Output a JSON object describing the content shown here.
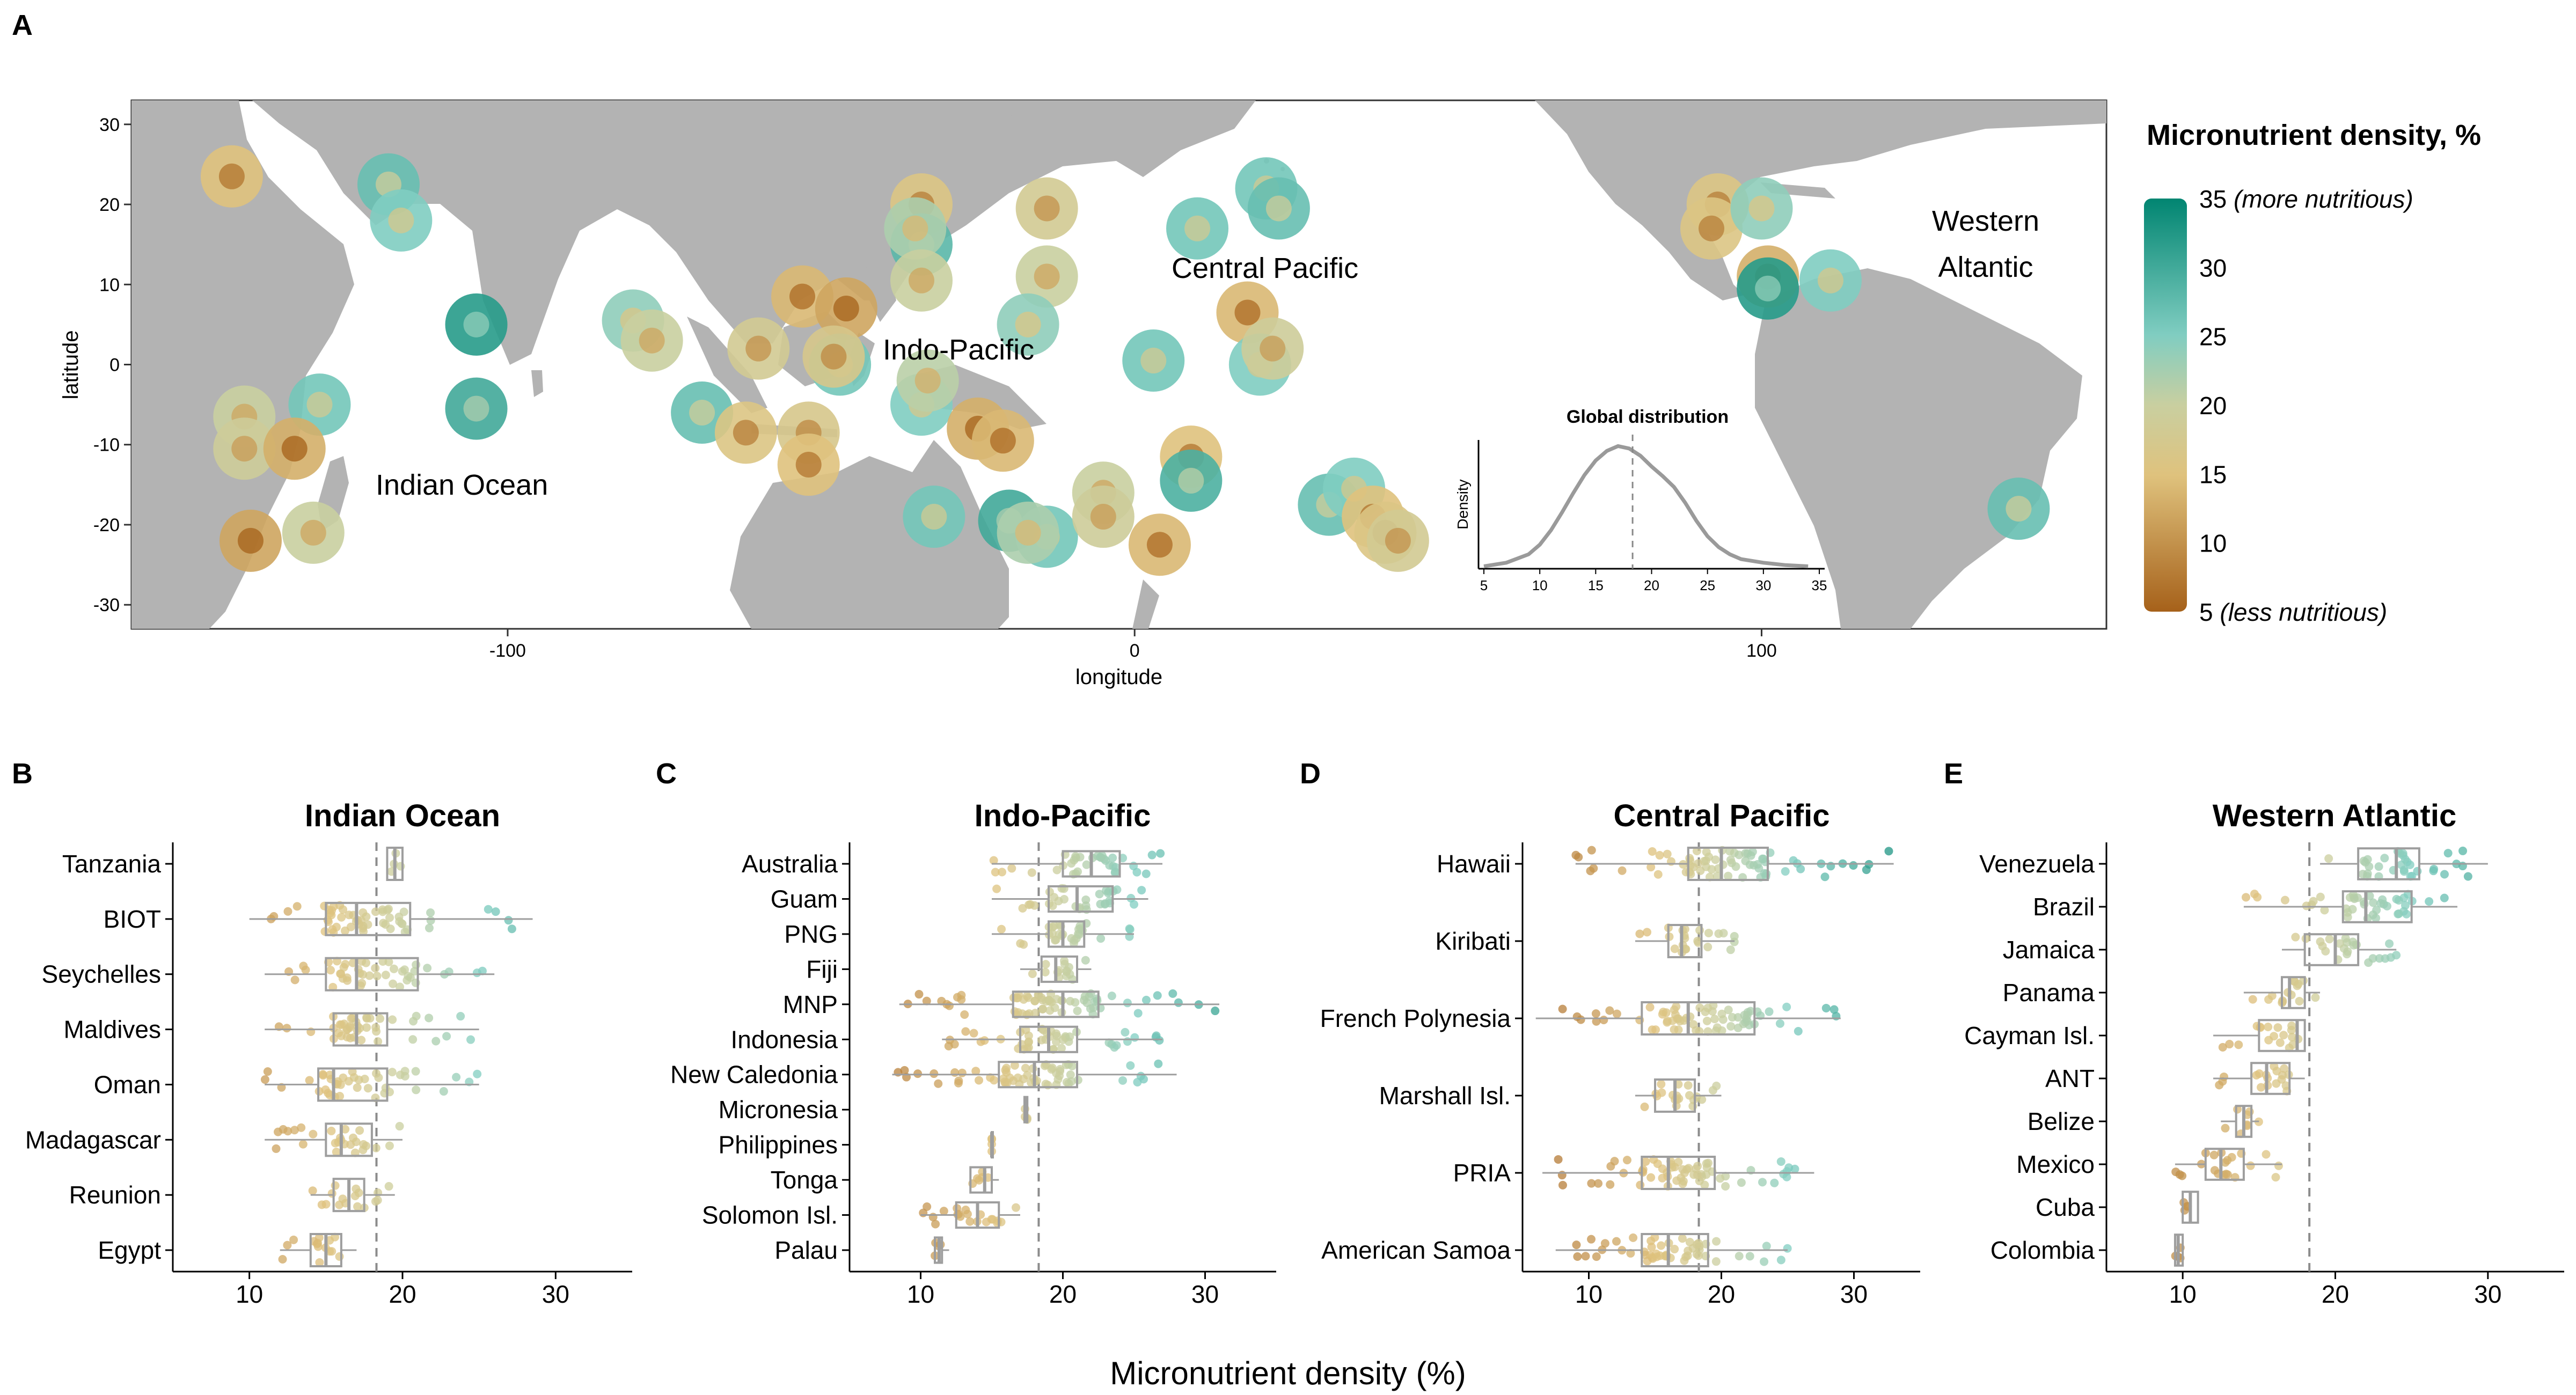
{
  "panel_letters": [
    "A",
    "B",
    "C",
    "D",
    "E"
  ],
  "map": {
    "xlabel": "longitude",
    "ylabel": "latitude",
    "x_ticks": [
      "-100",
      "0",
      "100"
    ],
    "y_ticks": [
      "30",
      "20",
      "10",
      "0",
      "-10",
      "-20",
      "-30"
    ],
    "region_labels": [
      "Indian Ocean",
      "Indo-Pacific",
      "Central Pacific",
      "Western\nAltantic"
    ],
    "inset": {
      "title": "Global distribution",
      "ylabel": "Density",
      "x_ticks": [
        "5",
        "10",
        "15",
        "20",
        "25",
        "30",
        "35"
      ]
    }
  },
  "legend": {
    "title": "Micronutrient density, %",
    "tick_labels": [
      "35 (more nutritious)",
      "30",
      "25",
      "20",
      "15",
      "10",
      "5 (less nutritious)"
    ],
    "range": [
      5,
      35
    ]
  },
  "colors": {
    "land": "#b3b3b3",
    "scale_low": "#a6611a",
    "scale_mid_low": "#dfc27d",
    "scale_mid": "#c9cfa0",
    "scale_mid_high": "#80cdc1",
    "scale_high": "#018571",
    "box": "#9e9e9e",
    "dashed_line": "#8c8c8c"
  },
  "shared_xlabel": "Micronutrient density (%)",
  "chart_data": [
    {
      "type": "scatter",
      "panel": "A",
      "title": "",
      "xlabel": "longitude",
      "ylabel": "latitude",
      "xlim": [
        -160,
        155
      ],
      "ylim": [
        -33,
        33
      ],
      "grid": false,
      "points": [
        {
          "lon": -144,
          "lat": 23.5,
          "value": 15
        },
        {
          "lon": -119,
          "lat": 22.5,
          "value": 27
        },
        {
          "lon": -117,
          "lat": 18,
          "value": 25
        },
        {
          "lon": -105,
          "lat": 5,
          "value": 32
        },
        {
          "lon": -105,
          "lat": -5.5,
          "value": 30
        },
        {
          "lon": -130,
          "lat": -5,
          "value": 26
        },
        {
          "lon": -142,
          "lat": -6.5,
          "value": 20
        },
        {
          "lon": -142,
          "lat": -10.5,
          "value": 19
        },
        {
          "lon": -134,
          "lat": -10.5,
          "value": 13
        },
        {
          "lon": -141,
          "lat": -22,
          "value": 12
        },
        {
          "lon": -131,
          "lat": -21,
          "value": 20
        },
        {
          "lon": -80,
          "lat": 5.5,
          "value": 24
        },
        {
          "lon": -77,
          "lat": 3,
          "value": 20
        },
        {
          "lon": -69,
          "lat": -6,
          "value": 27
        },
        {
          "lon": -62,
          "lat": -8.5,
          "value": 16
        },
        {
          "lon": -52,
          "lat": -8.5,
          "value": 17
        },
        {
          "lon": -52,
          "lat": -12.5,
          "value": 15
        },
        {
          "lon": -60,
          "lat": 2,
          "value": 18
        },
        {
          "lon": -53,
          "lat": 8.5,
          "value": 14
        },
        {
          "lon": -46,
          "lat": 7,
          "value": 12
        },
        {
          "lon": -47,
          "lat": 0,
          "value": 26
        },
        {
          "lon": -48,
          "lat": 1,
          "value": 17
        },
        {
          "lon": -34,
          "lat": 20,
          "value": 16
        },
        {
          "lon": -34,
          "lat": 15,
          "value": 28
        },
        {
          "lon": -35,
          "lat": 17,
          "value": 22
        },
        {
          "lon": -34,
          "lat": 10.5,
          "value": 20
        },
        {
          "lon": -14,
          "lat": 19.5,
          "value": 18
        },
        {
          "lon": -14,
          "lat": 11,
          "value": 20
        },
        {
          "lon": -17,
          "lat": 5,
          "value": 24
        },
        {
          "lon": -34,
          "lat": -5,
          "value": 25
        },
        {
          "lon": -33,
          "lat": -2,
          "value": 21
        },
        {
          "lon": -32,
          "lat": -19,
          "value": 26
        },
        {
          "lon": -25,
          "lat": -8,
          "value": 13
        },
        {
          "lon": -21,
          "lat": -9.5,
          "value": 14
        },
        {
          "lon": -20,
          "lat": -19.5,
          "value": 30
        },
        {
          "lon": -14,
          "lat": -21.5,
          "value": 26
        },
        {
          "lon": -17,
          "lat": -21,
          "value": 22
        },
        {
          "lon": -5,
          "lat": -16,
          "value": 20
        },
        {
          "lon": -5,
          "lat": -19,
          "value": 19
        },
        {
          "lon": 4,
          "lat": -22.5,
          "value": 14
        },
        {
          "lon": 3,
          "lat": 0.5,
          "value": 26
        },
        {
          "lon": 10,
          "lat": 17,
          "value": 26
        },
        {
          "lon": 21,
          "lat": 22,
          "value": 26
        },
        {
          "lon": 23,
          "lat": 19.5,
          "value": 27
        },
        {
          "lon": 18,
          "lat": 6.5,
          "value": 14
        },
        {
          "lon": 20,
          "lat": 0,
          "value": 25
        },
        {
          "lon": 22,
          "lat": 2,
          "value": 19
        },
        {
          "lon": 9,
          "lat": -11.5,
          "value": 15
        },
        {
          "lon": 9,
          "lat": -14.5,
          "value": 29
        },
        {
          "lon": 31,
          "lat": -17.5,
          "value": 27
        },
        {
          "lon": 35,
          "lat": -15.5,
          "value": 25
        },
        {
          "lon": 38,
          "lat": -19,
          "value": 15
        },
        {
          "lon": 40,
          "lat": -21,
          "value": 16
        },
        {
          "lon": 42,
          "lat": -22,
          "value": 18
        },
        {
          "lon": 93,
          "lat": 20,
          "value": 16
        },
        {
          "lon": 92,
          "lat": 17,
          "value": 16
        },
        {
          "lon": 100,
          "lat": 19.5,
          "value": 24
        },
        {
          "lon": 101,
          "lat": 11,
          "value": 13
        },
        {
          "lon": 101,
          "lat": 9.5,
          "value": 32
        },
        {
          "lon": 111,
          "lat": 10.5,
          "value": 25
        },
        {
          "lon": 141,
          "lat": -18,
          "value": 27
        }
      ]
    },
    {
      "type": "line",
      "panel": "A-inset",
      "title": "Global distribution",
      "xlabel": "",
      "ylabel": "Density",
      "xlim": [
        5,
        35
      ],
      "x": [
        5,
        7,
        9,
        10,
        11,
        12,
        13,
        14,
        15,
        16,
        17,
        18,
        19,
        20,
        21,
        22,
        23,
        24,
        25,
        26,
        27,
        28,
        30,
        32,
        34
      ],
      "y": [
        0.002,
        0.005,
        0.012,
        0.02,
        0.032,
        0.047,
        0.063,
        0.078,
        0.09,
        0.098,
        0.102,
        0.1,
        0.094,
        0.085,
        0.077,
        0.068,
        0.055,
        0.04,
        0.027,
        0.018,
        0.012,
        0.008,
        0.005,
        0.003,
        0.002
      ],
      "reference_x": 18.3
    },
    {
      "type": "box",
      "panel": "B",
      "title": "Indian Ocean",
      "xlabel": "",
      "ylabel": "",
      "xlim": [
        5,
        35
      ],
      "x_ticks": [
        10,
        20,
        30
      ],
      "reference_x": 18.3,
      "categories": [
        "Tanzania",
        "BIOT",
        "Seychelles",
        "Maldives",
        "Oman",
        "Madagascar",
        "Reunion",
        "Egypt"
      ],
      "boxes": [
        {
          "q1": 19,
          "median": 19.5,
          "q3": 20,
          "whisker_low": 19,
          "whisker_high": 20
        },
        {
          "q1": 15,
          "median": 17,
          "q3": 20.5,
          "whisker_low": 10,
          "whisker_high": 28.5
        },
        {
          "q1": 15,
          "median": 17,
          "q3": 21,
          "whisker_low": 11,
          "whisker_high": 26
        },
        {
          "q1": 15.5,
          "median": 17,
          "q3": 19,
          "whisker_low": 11,
          "whisker_high": 25
        },
        {
          "q1": 14.5,
          "median": 15.5,
          "q3": 19,
          "whisker_low": 11,
          "whisker_high": 25
        },
        {
          "q1": 15,
          "median": 16,
          "q3": 18,
          "whisker_low": 11,
          "whisker_high": 20
        },
        {
          "q1": 15.5,
          "median": 16.5,
          "q3": 17.5,
          "whisker_low": 14,
          "whisker_high": 19.5
        },
        {
          "q1": 14,
          "median": 15,
          "q3": 16,
          "whisker_low": 12,
          "whisker_high": 17
        }
      ]
    },
    {
      "type": "box",
      "panel": "C",
      "title": "Indo-Pacific",
      "xlabel": "",
      "ylabel": "",
      "xlim": [
        5,
        35
      ],
      "x_ticks": [
        10,
        20,
        30
      ],
      "reference_x": 18.3,
      "categories": [
        "Australia",
        "Guam",
        "PNG",
        "Fiji",
        "MNP",
        "Indonesia",
        "New Caledonia",
        "Micronesia",
        "Philippines",
        "Tonga",
        "Solomon Isl.",
        "Palau"
      ],
      "boxes": [
        {
          "q1": 20,
          "median": 22,
          "q3": 24,
          "whisker_low": 15,
          "whisker_high": 27
        },
        {
          "q1": 19,
          "median": 21,
          "q3": 23.5,
          "whisker_low": 15,
          "whisker_high": 26
        },
        {
          "q1": 19,
          "median": 20,
          "q3": 21.5,
          "whisker_low": 15,
          "whisker_high": 25
        },
        {
          "q1": 18.5,
          "median": 19.5,
          "q3": 21,
          "whisker_low": 17,
          "whisker_high": 22
        },
        {
          "q1": 16.5,
          "median": 20,
          "q3": 22.5,
          "whisker_low": 8.5,
          "whisker_high": 31
        },
        {
          "q1": 17,
          "median": 19,
          "q3": 21,
          "whisker_low": 11.5,
          "whisker_high": 27
        },
        {
          "q1": 15.5,
          "median": 18,
          "q3": 21,
          "whisker_low": 8,
          "whisker_high": 28
        },
        {
          "q1": 17.3,
          "median": 17.4,
          "q3": 17.5,
          "whisker_low": 17.3,
          "whisker_high": 17.5
        },
        {
          "q1": 15,
          "median": 15,
          "q3": 15,
          "whisker_low": 15,
          "whisker_high": 15
        },
        {
          "q1": 13.5,
          "median": 14.5,
          "q3": 15,
          "whisker_low": 13.5,
          "whisker_high": 15.5
        },
        {
          "q1": 12.5,
          "median": 14,
          "q3": 15.5,
          "whisker_low": 10,
          "whisker_high": 17
        },
        {
          "q1": 11,
          "median": 11.3,
          "q3": 11.5,
          "whisker_low": 11,
          "whisker_high": 12
        }
      ]
    },
    {
      "type": "box",
      "panel": "D",
      "title": "Central Pacific",
      "xlabel": "",
      "ylabel": "",
      "xlim": [
        5,
        35
      ],
      "x_ticks": [
        10,
        20,
        30
      ],
      "reference_x": 18.3,
      "categories": [
        "Hawaii",
        "Kiribati",
        "French Polynesia",
        "Marshall Isl.",
        "PRIA",
        "American Samoa"
      ],
      "boxes": [
        {
          "q1": 17.5,
          "median": 20,
          "q3": 23.5,
          "whisker_low": 9,
          "whisker_high": 33
        },
        {
          "q1": 16,
          "median": 17,
          "q3": 18.5,
          "whisker_low": 13.5,
          "whisker_high": 21
        },
        {
          "q1": 14,
          "median": 17.5,
          "q3": 22.5,
          "whisker_low": 6,
          "whisker_high": 29
        },
        {
          "q1": 15,
          "median": 16.5,
          "q3": 18,
          "whisker_low": 13.5,
          "whisker_high": 20
        },
        {
          "q1": 14,
          "median": 16,
          "q3": 19.5,
          "whisker_low": 6.5,
          "whisker_high": 27
        },
        {
          "q1": 14,
          "median": 16,
          "q3": 19,
          "whisker_low": 7.5,
          "whisker_high": 25
        }
      ]
    },
    {
      "type": "box",
      "panel": "E",
      "title": "Western Atlantic",
      "xlabel": "",
      "ylabel": "",
      "xlim": [
        5,
        35
      ],
      "x_ticks": [
        10,
        20,
        30
      ],
      "reference_x": 18.3,
      "categories": [
        "Venezuela",
        "Brazil",
        "Jamaica",
        "Panama",
        "Cayman Isl.",
        "ANT",
        "Belize",
        "Mexico",
        "Cuba",
        "Colombia"
      ],
      "boxes": [
        {
          "q1": 21.5,
          "median": 24,
          "q3": 25.5,
          "whisker_low": 19,
          "whisker_high": 30
        },
        {
          "q1": 20.5,
          "median": 22,
          "q3": 25,
          "whisker_low": 14,
          "whisker_high": 28
        },
        {
          "q1": 18,
          "median": 20,
          "q3": 21.5,
          "whisker_low": 16.5,
          "whisker_high": 24
        },
        {
          "q1": 16.5,
          "median": 17,
          "q3": 18,
          "whisker_low": 14,
          "whisker_high": 19
        },
        {
          "q1": 15,
          "median": 17.5,
          "q3": 18,
          "whisker_low": 12,
          "whisker_high": 18
        },
        {
          "q1": 14.5,
          "median": 15.5,
          "q3": 17,
          "whisker_low": 12,
          "whisker_high": 18
        },
        {
          "q1": 13.5,
          "median": 14,
          "q3": 14.5,
          "whisker_low": 12.5,
          "whisker_high": 15
        },
        {
          "q1": 11.5,
          "median": 12.5,
          "q3": 14,
          "whisker_low": 9.5,
          "whisker_high": 16.5
        },
        {
          "q1": 10,
          "median": 10.5,
          "q3": 11,
          "whisker_low": 10,
          "whisker_high": 11
        },
        {
          "q1": 9.5,
          "median": 9.7,
          "q3": 10,
          "whisker_low": 9.5,
          "whisker_high": 10
        }
      ]
    }
  ]
}
